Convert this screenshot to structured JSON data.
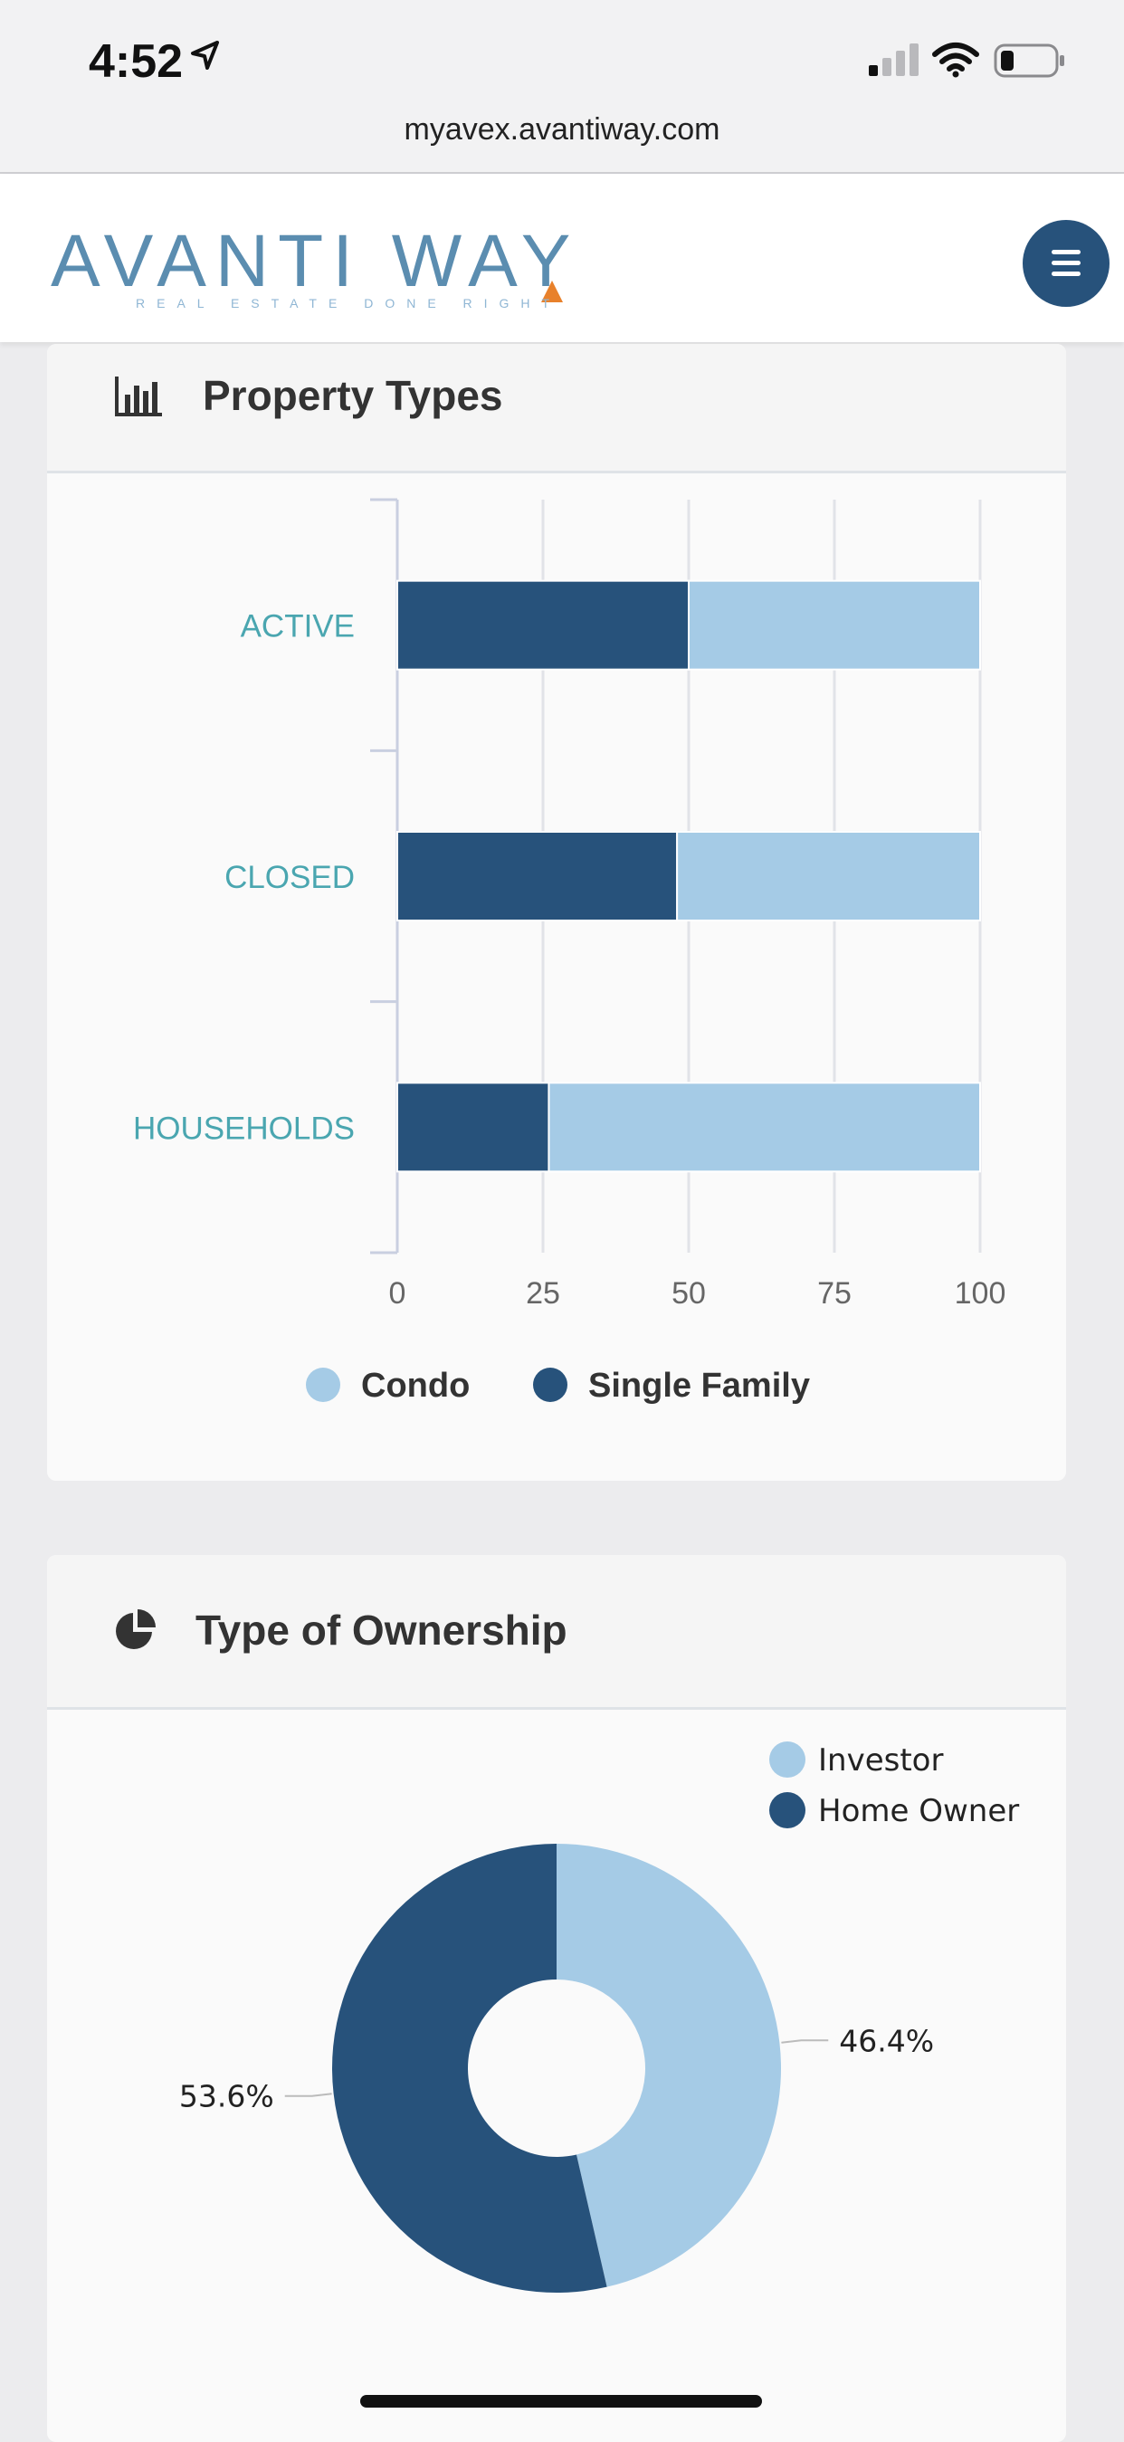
{
  "status_bar": {
    "time": "4:52"
  },
  "browser": {
    "url": "myavex.avantiway.com"
  },
  "header": {
    "logo_text": "AVANTI WAY",
    "logo_tagline": "REAL ESTATE DONE RIGHT",
    "menu_icon": "hamburger-icon"
  },
  "colors": {
    "condo": "#a5cbe6",
    "single_family": "#27527b",
    "brand_dark": "#27527b",
    "label_teal": "#4aa6b0"
  },
  "property_types": {
    "title": "Property Types",
    "icon": "bar-chart-icon"
  },
  "ownership": {
    "title": "Type of Ownership",
    "icon": "pie-chart-icon"
  },
  "chart_data": [
    {
      "type": "bar",
      "orientation": "horizontal",
      "stacked": true,
      "categories": [
        "ACTIVE",
        "CLOSED",
        "HOUSEHOLDS"
      ],
      "series": [
        {
          "name": "Single Family",
          "values": [
            50,
            48,
            26
          ],
          "color": "#27527b"
        },
        {
          "name": "Condo",
          "values": [
            50,
            52,
            74
          ],
          "color": "#a5cbe6"
        }
      ],
      "xlim": [
        0,
        100
      ],
      "xticks": [
        "0",
        "25",
        "50",
        "75",
        "100"
      ],
      "legend": [
        {
          "label": "Condo",
          "color": "#a5cbe6"
        },
        {
          "label": "Single Family",
          "color": "#27527b"
        }
      ],
      "legend_position": "bottom",
      "grid": true
    },
    {
      "type": "pie",
      "donut": true,
      "slices": [
        {
          "label": "Investor",
          "value": 46.4,
          "display": "46.4%",
          "color": "#a5cbe6"
        },
        {
          "label": "Home Owner",
          "value": 53.6,
          "display": "53.6%",
          "color": "#27527b"
        }
      ],
      "legend_position": "top-right"
    }
  ]
}
